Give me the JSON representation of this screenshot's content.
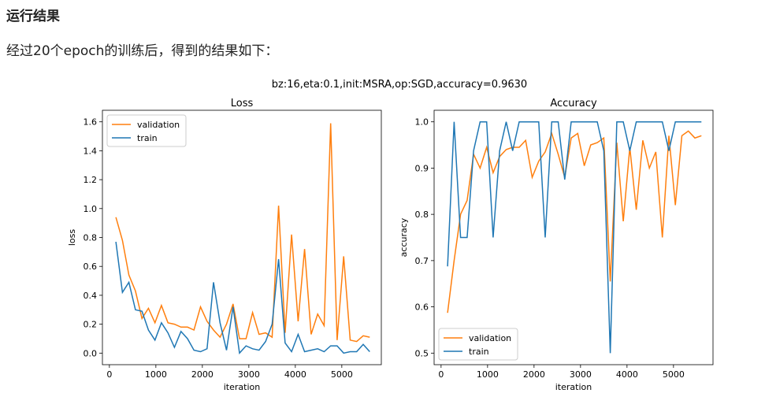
{
  "page": {
    "heading": "运行结果",
    "paragraph": "经过20个epoch的训练后，得到的结果如下："
  },
  "figure": {
    "suptitle": "bz:16,eta:0.1,init:MSRA,op:SGD,accuracy=0.9630"
  },
  "chart_data": [
    {
      "type": "line",
      "title": "Loss",
      "xlabel": "iteration",
      "ylabel": "loss",
      "xlim": [
        -150,
        5850
      ],
      "ylim": [
        -0.08,
        1.68
      ],
      "xticks": [
        "0",
        "1000",
        "2000",
        "3000",
        "4000",
        "5000"
      ],
      "yticks": [
        "0.0",
        "0.2",
        "0.4",
        "0.6",
        "0.8",
        "1.0",
        "1.2",
        "1.4",
        "1.6"
      ],
      "legend_position": "upper-left",
      "series": [
        {
          "name": "validation",
          "color": "#ff7f0e",
          "x": [
            140,
            280,
            420,
            560,
            700,
            840,
            980,
            1120,
            1260,
            1400,
            1540,
            1680,
            1820,
            1960,
            2100,
            2240,
            2380,
            2520,
            2660,
            2800,
            2940,
            3080,
            3220,
            3360,
            3500,
            3640,
            3780,
            3920,
            4060,
            4200,
            4340,
            4480,
            4620,
            4760,
            4900,
            5040,
            5180,
            5320,
            5460,
            5600
          ],
          "y": [
            0.94,
            0.78,
            0.54,
            0.43,
            0.24,
            0.31,
            0.21,
            0.33,
            0.21,
            0.2,
            0.18,
            0.18,
            0.16,
            0.32,
            0.22,
            0.16,
            0.11,
            0.2,
            0.34,
            0.1,
            0.1,
            0.28,
            0.13,
            0.14,
            0.11,
            1.02,
            0.14,
            0.82,
            0.22,
            0.72,
            0.13,
            0.27,
            0.19,
            1.59,
            0.09,
            0.67,
            0.09,
            0.08,
            0.12,
            0.11
          ]
        },
        {
          "name": "train",
          "color": "#1f77b4",
          "x": [
            140,
            280,
            420,
            560,
            700,
            840,
            980,
            1120,
            1260,
            1400,
            1540,
            1680,
            1820,
            1960,
            2100,
            2240,
            2380,
            2520,
            2660,
            2800,
            2940,
            3080,
            3220,
            3360,
            3500,
            3640,
            3780,
            3920,
            4060,
            4200,
            4340,
            4480,
            4620,
            4760,
            4900,
            5040,
            5180,
            5320,
            5460,
            5600
          ],
          "y": [
            0.77,
            0.42,
            0.49,
            0.3,
            0.29,
            0.16,
            0.09,
            0.21,
            0.14,
            0.04,
            0.15,
            0.1,
            0.02,
            0.01,
            0.03,
            0.49,
            0.21,
            0.02,
            0.32,
            0.0,
            0.05,
            0.03,
            0.02,
            0.08,
            0.2,
            0.65,
            0.07,
            0.01,
            0.13,
            0.01,
            0.02,
            0.03,
            0.01,
            0.05,
            0.05,
            0.0,
            0.01,
            0.01,
            0.06,
            0.01
          ]
        }
      ]
    },
    {
      "type": "line",
      "title": "Accuracy",
      "xlabel": "iteration",
      "ylabel": "accuracy",
      "xlim": [
        -150,
        5850
      ],
      "ylim": [
        0.475,
        1.025
      ],
      "xticks": [
        "0",
        "1000",
        "2000",
        "3000",
        "4000",
        "5000"
      ],
      "yticks": [
        "0.5",
        "0.6",
        "0.7",
        "0.8",
        "0.9",
        "1.0"
      ],
      "legend_position": "lower-left",
      "series": [
        {
          "name": "validation",
          "color": "#ff7f0e",
          "x": [
            140,
            280,
            420,
            560,
            700,
            840,
            980,
            1120,
            1260,
            1400,
            1540,
            1680,
            1820,
            1960,
            2100,
            2240,
            2380,
            2520,
            2660,
            2800,
            2940,
            3080,
            3220,
            3360,
            3500,
            3640,
            3780,
            3920,
            4060,
            4200,
            4340,
            4480,
            4620,
            4760,
            4900,
            5040,
            5180,
            5320,
            5460,
            5600
          ],
          "y": [
            0.587,
            0.7,
            0.8,
            0.83,
            0.93,
            0.9,
            0.945,
            0.89,
            0.925,
            0.94,
            0.945,
            0.945,
            0.96,
            0.88,
            0.915,
            0.935,
            0.975,
            0.93,
            0.88,
            0.965,
            0.975,
            0.905,
            0.95,
            0.955,
            0.965,
            0.655,
            0.955,
            0.785,
            0.945,
            0.81,
            0.96,
            0.9,
            0.935,
            0.75,
            0.97,
            0.82,
            0.97,
            0.98,
            0.965,
            0.97
          ]
        },
        {
          "name": "train",
          "color": "#1f77b4",
          "x": [
            140,
            280,
            420,
            560,
            700,
            840,
            980,
            1120,
            1260,
            1400,
            1540,
            1680,
            1820,
            1960,
            2100,
            2240,
            2380,
            2520,
            2660,
            2800,
            2940,
            3080,
            3220,
            3360,
            3500,
            3640,
            3780,
            3920,
            4060,
            4200,
            4340,
            4480,
            4620,
            4760,
            4900,
            5040,
            5180,
            5320,
            5460,
            5600
          ],
          "y": [
            0.6875,
            1.0,
            0.75,
            0.75,
            0.9375,
            1.0,
            1.0,
            0.75,
            0.9375,
            1.0,
            0.9375,
            1.0,
            1.0,
            1.0,
            1.0,
            0.75,
            1.0,
            1.0,
            0.875,
            1.0,
            1.0,
            1.0,
            1.0,
            1.0,
            0.9375,
            0.5,
            1.0,
            1.0,
            0.9375,
            1.0,
            1.0,
            1.0,
            1.0,
            1.0,
            0.9375,
            1.0,
            1.0,
            1.0,
            1.0,
            1.0
          ]
        }
      ]
    }
  ]
}
